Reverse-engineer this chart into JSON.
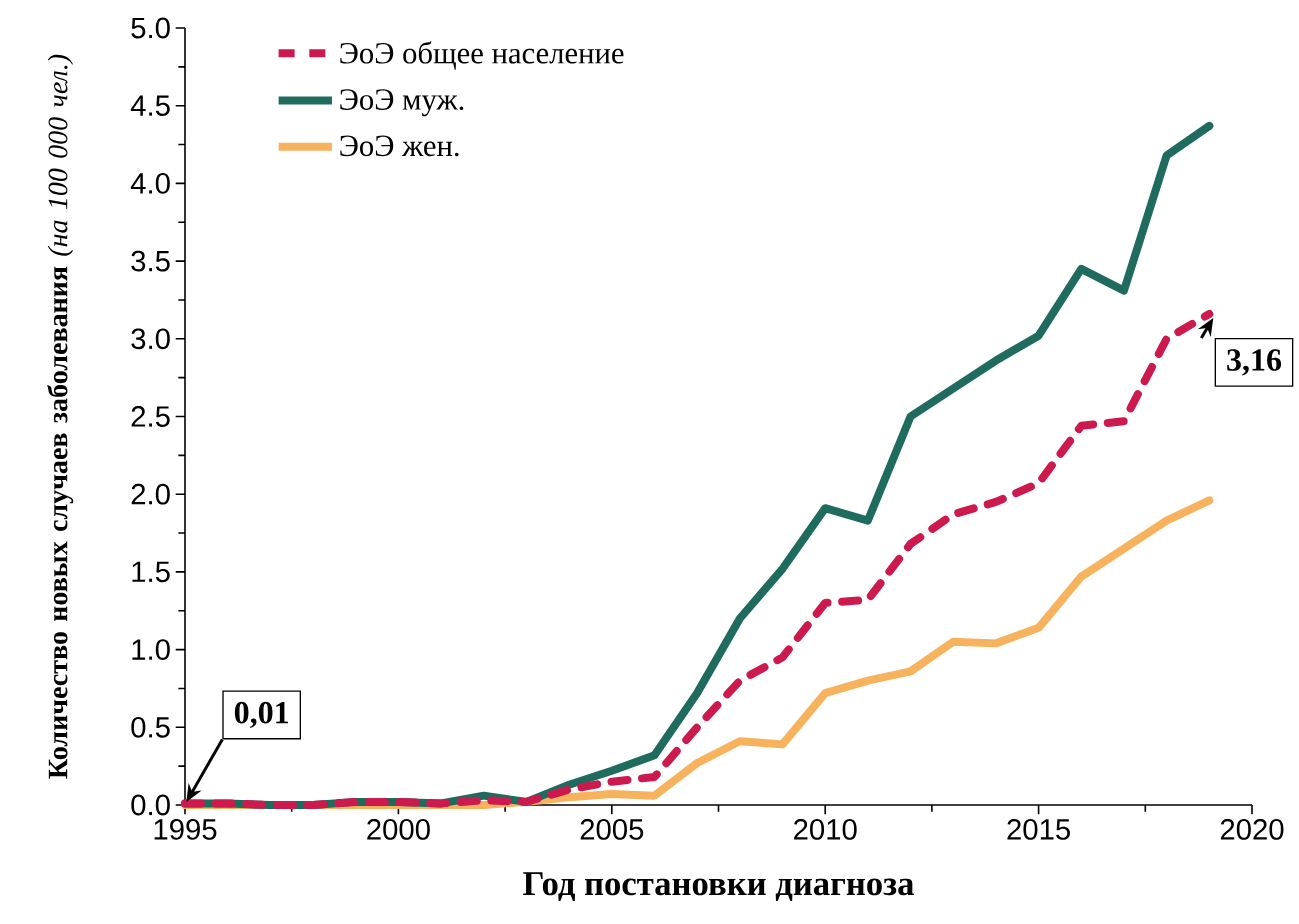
{
  "chart_data": {
    "type": "line",
    "xlabel": "Год постановки диагноза",
    "ylabel": "**Количество новых случаев заболевания** *(на 100 000 чел.)*",
    "x": [
      1995,
      1996,
      1997,
      1998,
      1999,
      2000,
      2001,
      2002,
      2003,
      2004,
      2005,
      2006,
      2007,
      2008,
      2009,
      2010,
      2011,
      2012,
      2013,
      2014,
      2015,
      2016,
      2017,
      2018,
      2019
    ],
    "series": [
      {
        "name": "ЭоЭ общее население",
        "color": "#cc1a4e",
        "line_style": "dashed",
        "values": [
          0.01,
          0.01,
          0.0,
          0.0,
          0.02,
          0.02,
          0.01,
          0.03,
          0.02,
          0.1,
          0.15,
          0.18,
          0.5,
          0.8,
          0.95,
          1.3,
          1.32,
          1.68,
          1.87,
          1.95,
          2.07,
          2.44,
          2.47,
          3.0,
          3.16
        ]
      },
      {
        "name": "ЭоЭ муж.",
        "color": "#1f6b5e",
        "line_style": "solid",
        "values": [
          0.01,
          0.01,
          0.0,
          0.0,
          0.02,
          0.02,
          0.01,
          0.06,
          0.02,
          0.13,
          0.22,
          0.32,
          0.72,
          1.2,
          1.52,
          1.91,
          1.83,
          2.5,
          2.68,
          2.86,
          3.02,
          3.45,
          3.31,
          4.18,
          4.37
        ]
      },
      {
        "name": "ЭоЭ жен.",
        "color": "#f7b25e",
        "line_style": "solid",
        "values": [
          0.0,
          0.0,
          0.0,
          0.0,
          0.0,
          0.0,
          0.0,
          0.0,
          0.02,
          0.05,
          0.07,
          0.06,
          0.27,
          0.41,
          0.39,
          0.72,
          0.8,
          0.86,
          1.05,
          1.04,
          1.14,
          1.47,
          1.65,
          1.83,
          1.96
        ]
      }
    ],
    "xlim": [
      1995,
      2020
    ],
    "xticks": [
      1995,
      2000,
      2005,
      2010,
      2015,
      2020
    ],
    "ylim": [
      0,
      5.0
    ],
    "yticks": [
      {
        "value": 0,
        "label": "0.0"
      },
      {
        "value": 0.5,
        "label": "0.5"
      },
      {
        "value": 1.0,
        "label": "1.0"
      },
      {
        "value": 1.5,
        "label": "1.5"
      },
      {
        "value": 2.0,
        "label": "2.0"
      },
      {
        "value": 2.5,
        "label": "2.5"
      },
      {
        "value": 3.0,
        "label": "3.0"
      },
      {
        "value": 3.5,
        "label": "3.5"
      },
      {
        "value": 4.0,
        "label": "4.0"
      },
      {
        "value": 4.5,
        "label": "4.5"
      },
      {
        "value": 5.0,
        "label": "5.0"
      }
    ],
    "annotations": [
      {
        "text": "0,01",
        "x": 1995,
        "y": 0.01
      },
      {
        "text": "3,16",
        "x": 2019,
        "y": 3.16
      }
    ],
    "legend": "top left",
    "marker": "none",
    "grid": false
  }
}
